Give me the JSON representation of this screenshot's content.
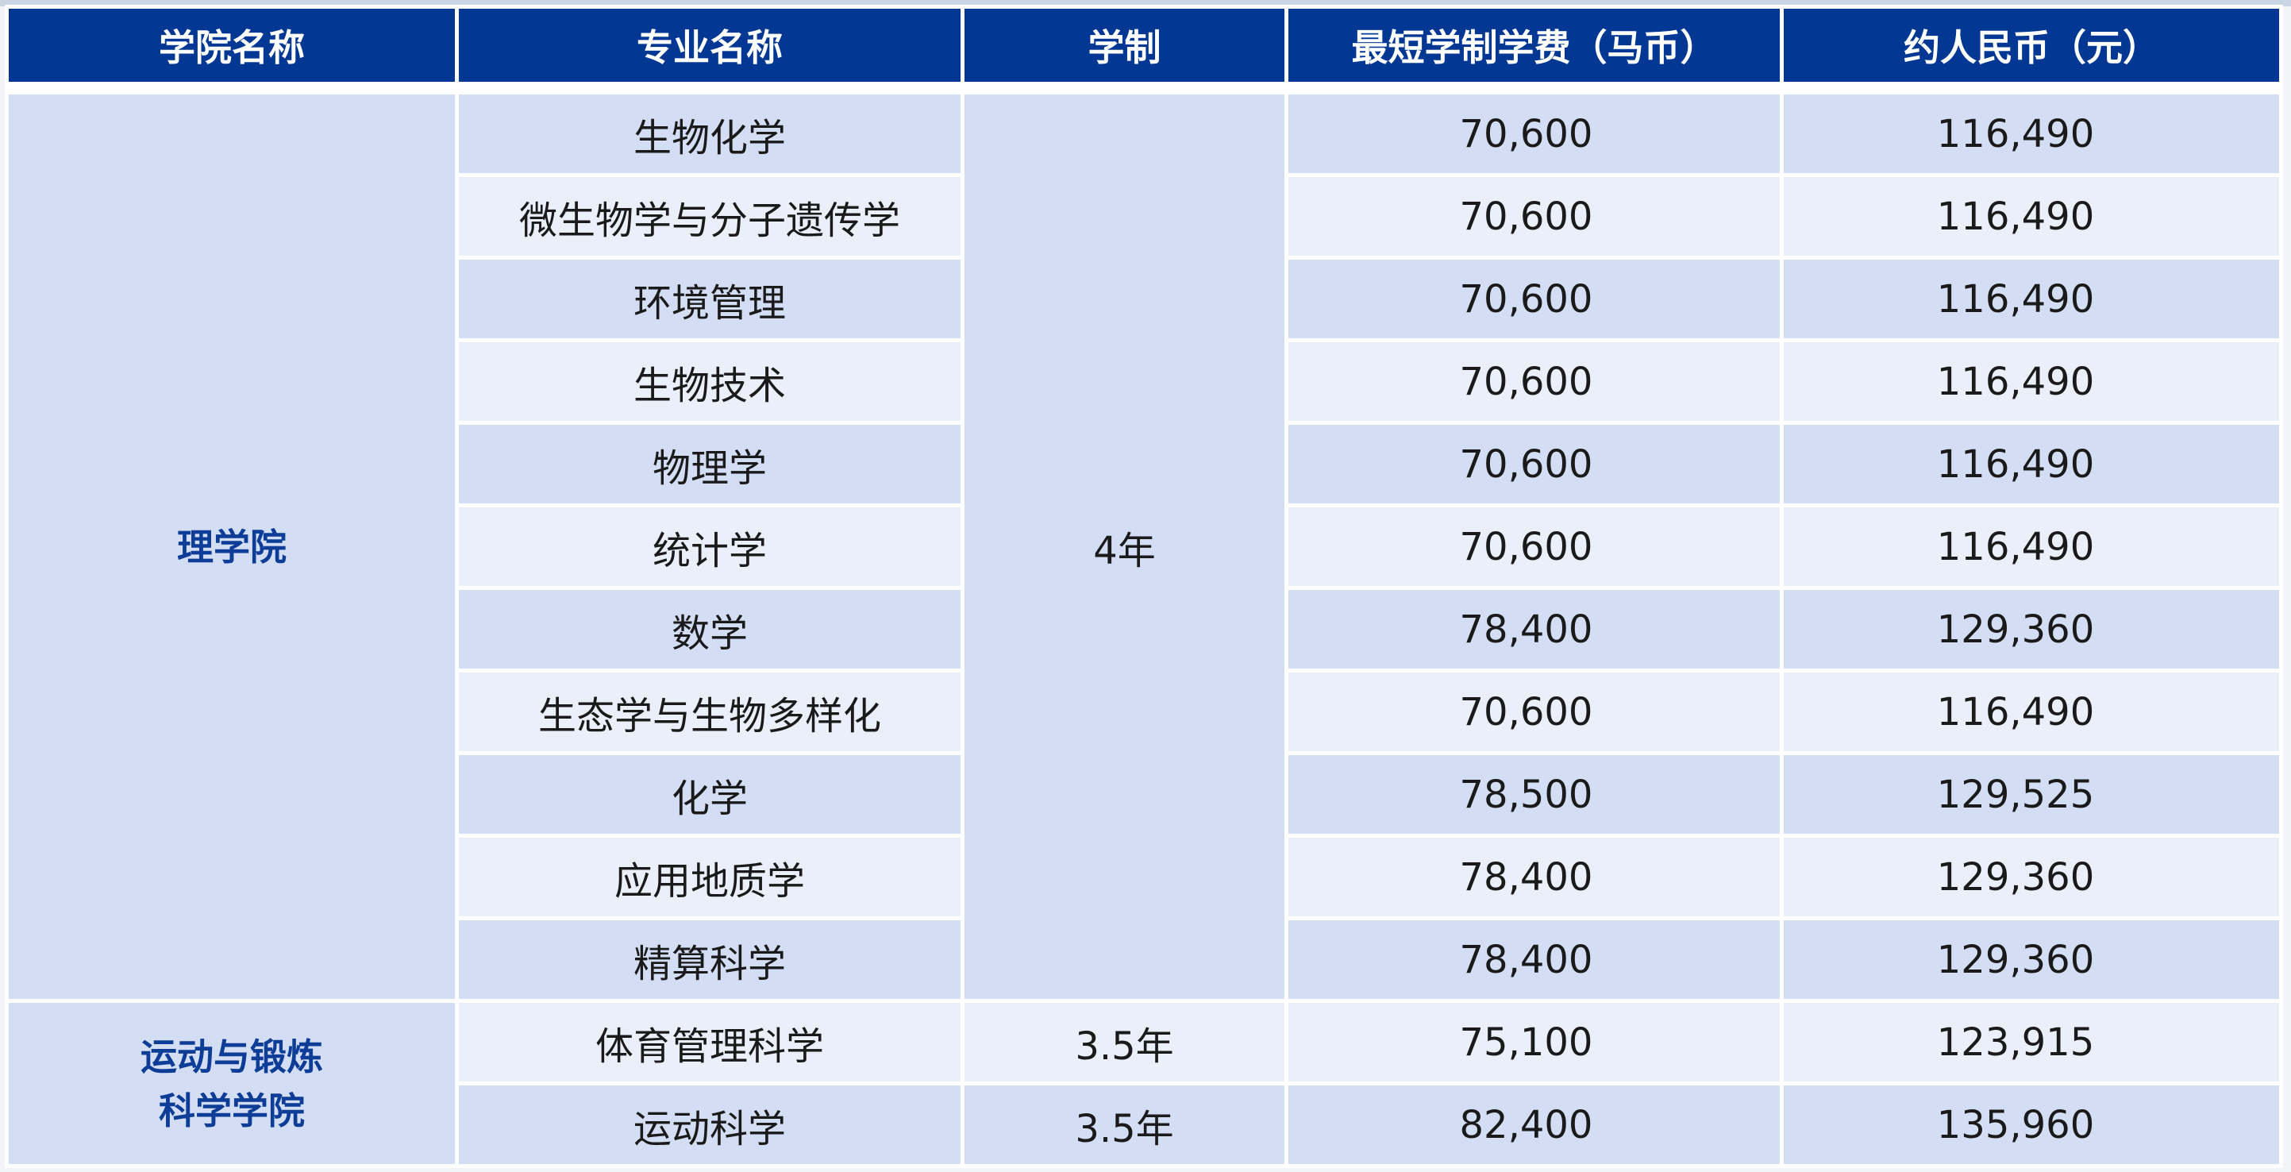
{
  "table": {
    "headers": [
      "学院名称",
      "专业名称",
      "学制",
      "最短学制学费（马币）",
      "约人民币（元）"
    ],
    "groups": [
      {
        "college": "理学院",
        "duration": "4年",
        "rows": [
          {
            "major": "生物化学",
            "fee_myr": "70,600",
            "fee_cny": "116,490"
          },
          {
            "major": "微生物学与分子遗传学",
            "fee_myr": "70,600",
            "fee_cny": "116,490"
          },
          {
            "major": "环境管理",
            "fee_myr": "70,600",
            "fee_cny": "116,490"
          },
          {
            "major": "生物技术",
            "fee_myr": "70,600",
            "fee_cny": "116,490"
          },
          {
            "major": "物理学",
            "fee_myr": "70,600",
            "fee_cny": "116,490"
          },
          {
            "major": "统计学",
            "fee_myr": "70,600",
            "fee_cny": "116,490"
          },
          {
            "major": "数学",
            "fee_myr": "78,400",
            "fee_cny": "129,360"
          },
          {
            "major": "生态学与生物多样化",
            "fee_myr": "70,600",
            "fee_cny": "116,490"
          },
          {
            "major": "化学",
            "fee_myr": "78,500",
            "fee_cny": "129,525"
          },
          {
            "major": "应用地质学",
            "fee_myr": "78,400",
            "fee_cny": "129,360"
          },
          {
            "major": "精算科学",
            "fee_myr": "78,400",
            "fee_cny": "129,360"
          }
        ]
      },
      {
        "college_line1": "运动与锻炼",
        "college_line2": "科学学院",
        "rows": [
          {
            "major": "体育管理科学",
            "duration": "3.5年",
            "fee_myr": "75,100",
            "fee_cny": "123,915"
          },
          {
            "major": "运动科学",
            "duration": "3.5年",
            "fee_myr": "82,400",
            "fee_cny": "135,960"
          }
        ]
      }
    ],
    "colors": {
      "header_bg": "#023893",
      "row_dark": "#d3ddf4",
      "row_light": "#eaeffa",
      "college_text": "#0d3d96"
    }
  }
}
